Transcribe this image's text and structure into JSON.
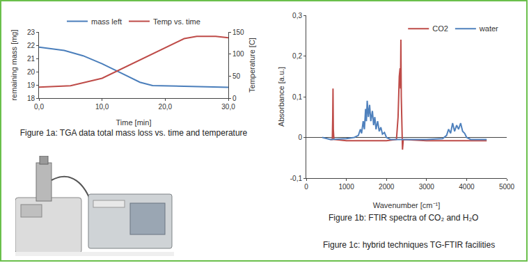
{
  "chart_data": [
    {
      "type": "line",
      "xlabel": "Time [min]",
      "ylabel": "remaining mass [mg]",
      "y2label": "Temperature [C]",
      "x": [
        0,
        4,
        7,
        10,
        13,
        16,
        18,
        22,
        26,
        30
      ],
      "series": [
        {
          "name": "mass left",
          "color": "#4a7ebb",
          "values": [
            21.85,
            21.6,
            21.2,
            20.6,
            19.9,
            19.2,
            18.95,
            18.9,
            18.85,
            18.82
          ]
        },
        {
          "name": "Temp vs. time",
          "color": "#be4b48",
          "axis": "y2",
          "x": [
            0,
            5,
            10,
            15,
            20,
            23,
            25,
            28,
            30
          ],
          "values": [
            25,
            28,
            45,
            80,
            115,
            135,
            140,
            140,
            137
          ]
        }
      ],
      "xlim": [
        0,
        30
      ],
      "xticks": [
        {
          "value": 0,
          "label": "0,0"
        },
        {
          "value": 10,
          "label": "10,0"
        },
        {
          "value": 20,
          "label": "20,0"
        },
        {
          "value": 30,
          "label": "30,0"
        }
      ],
      "ylim": [
        18,
        23
      ],
      "yticks": [
        18,
        19,
        20,
        21,
        22,
        23
      ],
      "y2lim": [
        0,
        150
      ],
      "y2ticks": [
        0,
        50,
        100,
        150
      ],
      "legend": "top",
      "grid": false
    },
    {
      "type": "line",
      "xlabel": "Wavenumber [cm⁻¹]",
      "ylabel": "Absorbance [a.u.]",
      "series": [
        {
          "name": "CO2",
          "color": "#be4b48",
          "x": [
            600,
            650,
            660,
            667,
            675,
            690,
            1000,
            2000,
            2250,
            2290,
            2320,
            2340,
            2350,
            2360,
            2370,
            2385,
            2400,
            2420,
            3000,
            4500
          ],
          "values": [
            -0.005,
            -0.005,
            0.05,
            0.12,
            0.02,
            -0.005,
            -0.008,
            -0.008,
            -0.005,
            0.05,
            0.15,
            0.17,
            0.12,
            0.24,
            0.1,
            -0.01,
            -0.03,
            -0.005,
            -0.008,
            -0.008
          ]
        },
        {
          "name": "water",
          "color": "#4f81bd",
          "x": [
            400,
            600,
            1000,
            1200,
            1300,
            1350,
            1380,
            1420,
            1450,
            1480,
            1500,
            1520,
            1550,
            1580,
            1610,
            1650,
            1680,
            1710,
            1740,
            1780,
            1820,
            1860,
            1900,
            1950,
            2000,
            2100,
            2500,
            3000,
            3400,
            3500,
            3550,
            3600,
            3650,
            3700,
            3750,
            3800,
            3850,
            3900,
            3950,
            4000,
            4100,
            4500
          ],
          "values": [
            0,
            -0.005,
            -0.003,
            0,
            0.005,
            0.02,
            0.01,
            0.04,
            0.02,
            0.07,
            0.04,
            0.09,
            0.05,
            0.08,
            0.04,
            0.065,
            0.03,
            0.05,
            0.02,
            0.04,
            0.015,
            0.025,
            0.008,
            0.012,
            0,
            -0.005,
            -0.005,
            -0.005,
            -0.003,
            0.005,
            0.02,
            0.01,
            0.035,
            0.015,
            0.03,
            0.02,
            0.035,
            0.015,
            0.01,
            0,
            -0.005,
            -0.005
          ]
        }
      ],
      "xlim": [
        0,
        5000
      ],
      "xticks": [
        0,
        1000,
        2000,
        3000,
        4000,
        5000
      ],
      "ylim": [
        -0.1,
        0.3
      ],
      "yticks": [
        {
          "value": -0.1,
          "label": "-0,1"
        },
        0,
        {
          "value": 0.1,
          "label": "0,1"
        },
        {
          "value": 0.2,
          "label": "0,2"
        },
        {
          "value": 0.3,
          "label": "0,3"
        }
      ],
      "legend": "top right",
      "grid": false
    }
  ],
  "captions": [
    "Figure 1a: TGA data total mass loss vs. time and temperature",
    "Figure 1b: FTIR spectra of CO₂ and H₂O",
    "Figure 1c: hybrid techniques TG-FTIR facilities"
  ]
}
